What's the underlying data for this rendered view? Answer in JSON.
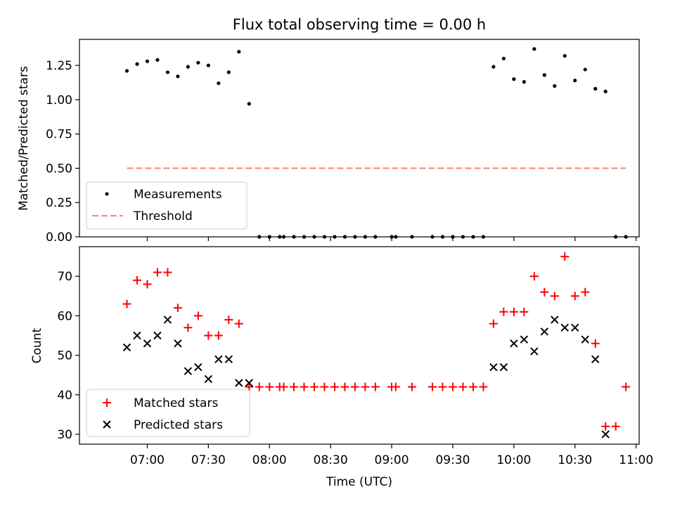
{
  "title": "Flux total observing time = 0.00 h",
  "xlabel": "Time (UTC)",
  "colors": {
    "measurements": "#000000",
    "threshold": "#ff7f7f",
    "matched": "#ff0000",
    "predicted": "#000000"
  },
  "chart_data": [
    {
      "type": "scatter",
      "title": "Flux total observing time = 0.00 h",
      "ylabel": "Matched/Predicted stars",
      "ylim": [
        0,
        1.44
      ],
      "xlim": [
        "06:30",
        "11:00"
      ],
      "yticks": [
        "0.00",
        "0.25",
        "0.50",
        "0.75",
        "1.00",
        "1.25"
      ],
      "legend_position": "lower-left",
      "series": [
        {
          "name": "Measurements",
          "marker": "dot",
          "x": [
            "06:50",
            "06:55",
            "07:00",
            "07:05",
            "07:10",
            "07:15",
            "07:20",
            "07:25",
            "07:30",
            "07:35",
            "07:40",
            "07:45",
            "07:50",
            "07:55",
            "08:00",
            "08:05",
            "08:07",
            "08:12",
            "08:17",
            "08:22",
            "08:27",
            "08:32",
            "08:37",
            "08:42",
            "08:47",
            "08:52",
            "09:00",
            "09:02",
            "09:10",
            "09:20",
            "09:25",
            "09:30",
            "09:35",
            "09:40",
            "09:45",
            "09:50",
            "09:55",
            "10:00",
            "10:05",
            "10:10",
            "10:15",
            "10:20",
            "10:25",
            "10:30",
            "10:35",
            "10:40",
            "10:45",
            "10:50",
            "10:55"
          ],
          "y": [
            1.21,
            1.26,
            1.28,
            1.29,
            1.2,
            1.17,
            1.24,
            1.27,
            1.25,
            1.12,
            1.2,
            1.35,
            0.97,
            0,
            0,
            0,
            0,
            0,
            0,
            0,
            0,
            0,
            0,
            0,
            0,
            0,
            0,
            0,
            0,
            0,
            0,
            0,
            0,
            0,
            0,
            1.24,
            1.3,
            1.15,
            1.13,
            1.37,
            1.18,
            1.1,
            1.32,
            1.14,
            1.22,
            1.08,
            1.06,
            0,
            0
          ]
        },
        {
          "name": "Threshold",
          "line": "dashed",
          "x": [
            "06:50",
            "10:55"
          ],
          "y": [
            0.5,
            0.5
          ]
        }
      ]
    },
    {
      "type": "scatter",
      "xlabel": "Time (UTC)",
      "ylabel": "Count",
      "ylim": [
        27.5,
        77.5
      ],
      "xlim": [
        "06:30",
        "11:00"
      ],
      "yticks": [
        "30",
        "40",
        "50",
        "60",
        "70"
      ],
      "xticks": [
        "07:00",
        "07:30",
        "08:00",
        "08:30",
        "09:00",
        "09:30",
        "10:00",
        "10:30",
        "11:00"
      ],
      "legend_position": "lower-left",
      "series": [
        {
          "name": "Matched stars",
          "marker": "plus",
          "x": [
            "06:50",
            "06:55",
            "07:00",
            "07:05",
            "07:10",
            "07:15",
            "07:20",
            "07:25",
            "07:30",
            "07:35",
            "07:40",
            "07:45",
            "07:50",
            "07:55",
            "08:00",
            "08:05",
            "08:07",
            "08:12",
            "08:17",
            "08:22",
            "08:27",
            "08:32",
            "08:37",
            "08:42",
            "08:47",
            "08:52",
            "09:00",
            "09:02",
            "09:10",
            "09:20",
            "09:25",
            "09:30",
            "09:35",
            "09:40",
            "09:45",
            "09:50",
            "09:55",
            "10:00",
            "10:05",
            "10:10",
            "10:15",
            "10:20",
            "10:25",
            "10:30",
            "10:35",
            "10:40",
            "10:45",
            "10:50",
            "10:55"
          ],
          "y": [
            63,
            69,
            68,
            71,
            71,
            62,
            57,
            60,
            55,
            55,
            59,
            58,
            42,
            42,
            42,
            42,
            42,
            42,
            42,
            42,
            42,
            42,
            42,
            42,
            42,
            42,
            42,
            42,
            42,
            42,
            42,
            42,
            42,
            42,
            42,
            58,
            61,
            61,
            61,
            70,
            66,
            65,
            75,
            65,
            66,
            53,
            32,
            32,
            42
          ]
        },
        {
          "name": "Predicted stars",
          "marker": "x",
          "x": [
            "06:50",
            "06:55",
            "07:00",
            "07:05",
            "07:10",
            "07:15",
            "07:20",
            "07:25",
            "07:30",
            "07:35",
            "07:40",
            "07:45",
            "07:50",
            "09:50",
            "09:55",
            "10:00",
            "10:05",
            "10:10",
            "10:15",
            "10:20",
            "10:25",
            "10:30",
            "10:35",
            "10:40",
            "10:45"
          ],
          "y": [
            52,
            55,
            53,
            55,
            59,
            53,
            46,
            47,
            44,
            49,
            49,
            43,
            43,
            47,
            47,
            53,
            54,
            51,
            56,
            59,
            57,
            57,
            54,
            49,
            30
          ]
        }
      ]
    }
  ]
}
